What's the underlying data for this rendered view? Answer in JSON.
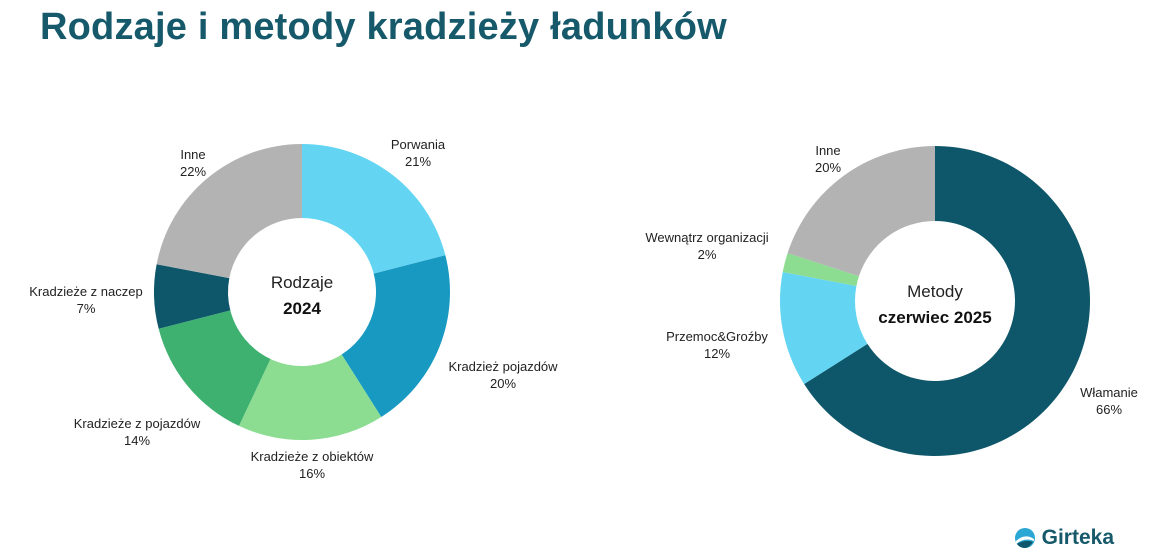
{
  "title": "Rodzaje i metody kradzieży ładunków",
  "logo_text": "Girteka",
  "chart_data": [
    {
      "type": "pie",
      "center_label": [
        "Rodzaje",
        "2024"
      ],
      "slices": [
        {
          "label": "Porwania",
          "value": 21,
          "pct_text": "21%",
          "color": "#63d5f3"
        },
        {
          "label": "Kradzież pojazdów",
          "value": 20,
          "pct_text": "20%",
          "color": "#1799c2"
        },
        {
          "label": "Kradzieże z obiektów",
          "value": 16,
          "pct_text": "16%",
          "color": "#8cdd92"
        },
        {
          "label": "Kradzieże z pojazdów",
          "value": 14,
          "pct_text": "14%",
          "color": "#3eb171"
        },
        {
          "label": "Kradzieże z naczep",
          "value": 7,
          "pct_text": "7%",
          "color": "#0e5669"
        },
        {
          "label": "Inne",
          "value": 22,
          "pct_text": "22%",
          "color": "#b3b3b3"
        }
      ]
    },
    {
      "type": "pie",
      "center_label": [
        "Metody",
        "czerwiec 2025"
      ],
      "slices": [
        {
          "label": "Włamanie",
          "value": 66,
          "pct_text": "66%",
          "color": "#0e5669"
        },
        {
          "label": "Przemoc&Groźby",
          "value": 12,
          "pct_text": "12%",
          "color": "#63d5f3"
        },
        {
          "label": "Wewnątrz organizacji",
          "value": 2,
          "pct_text": "2%",
          "color": "#8cdd92"
        },
        {
          "label": "Inne",
          "value": 20,
          "pct_text": "20%",
          "color": "#b3b3b3"
        }
      ]
    }
  ]
}
